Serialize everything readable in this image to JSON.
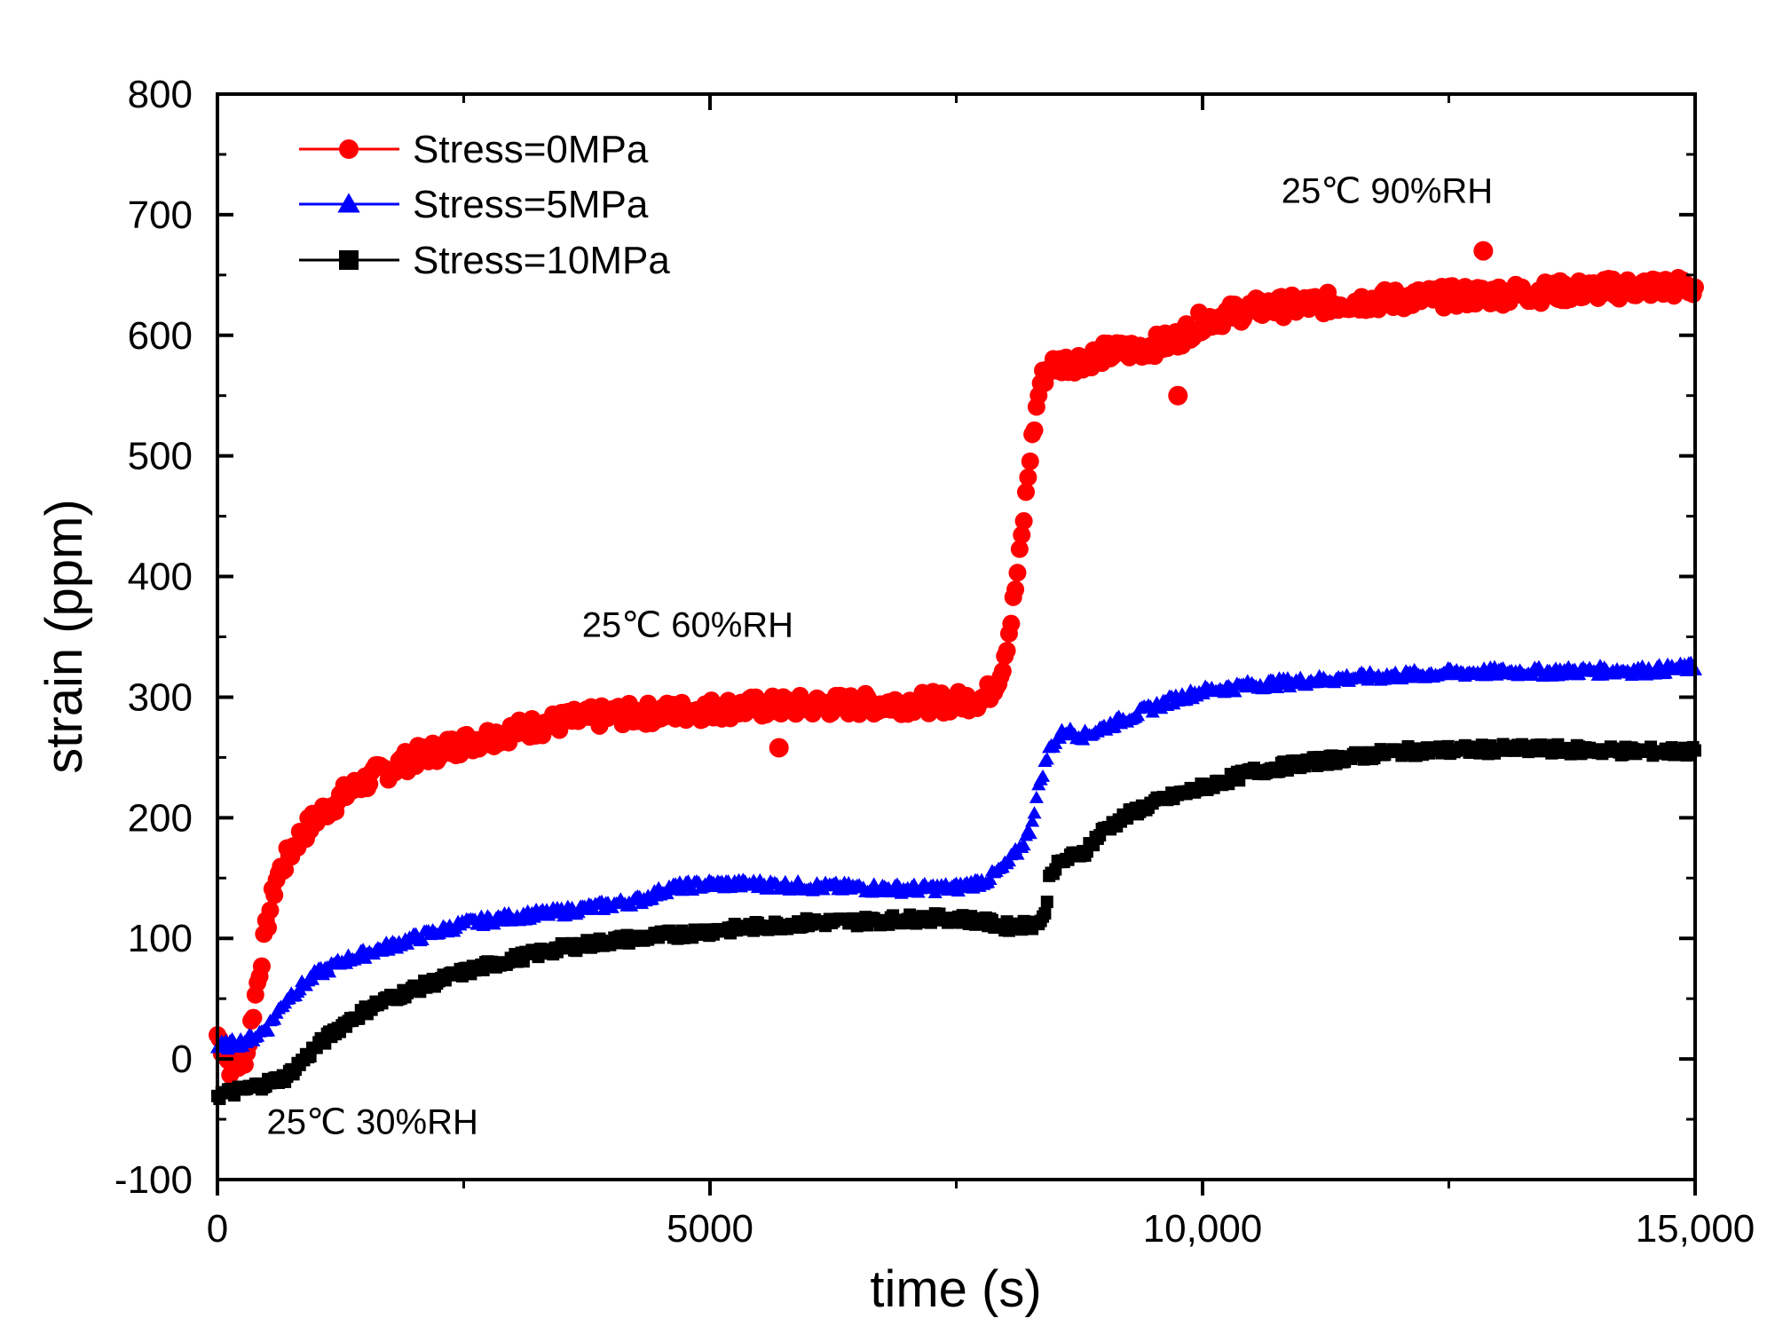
{
  "chart_data": {
    "type": "scatter",
    "title": "",
    "xlabel": "time (s)",
    "ylabel": "strain (ppm)",
    "xlim": [
      0,
      15000
    ],
    "ylim": [
      -100,
      800
    ],
    "x_ticks": [
      0,
      5000,
      10000,
      15000
    ],
    "x_tick_labels": [
      "0",
      "5000",
      "10,000",
      "15,000"
    ],
    "y_ticks": [
      -100,
      0,
      100,
      200,
      300,
      400,
      500,
      600,
      700,
      800
    ],
    "y_tick_labels": [
      "-100",
      "0",
      "100",
      "200",
      "300",
      "400",
      "500",
      "600",
      "700",
      "800"
    ],
    "grid": false,
    "legend_position": "top-left",
    "series": [
      {
        "name": "Stress=0MPa",
        "color": "#ff0000",
        "marker": "circle",
        "points": [
          [
            0,
            20
          ],
          [
            150,
            -10
          ],
          [
            300,
            5
          ],
          [
            400,
            60
          ],
          [
            500,
            110
          ],
          [
            600,
            150
          ],
          [
            800,
            180
          ],
          [
            1000,
            200
          ],
          [
            1300,
            220
          ],
          [
            1600,
            235
          ],
          [
            2000,
            250
          ],
          [
            2500,
            262
          ],
          [
            3000,
            272
          ],
          [
            3500,
            280
          ],
          [
            4000,
            285
          ],
          [
            4500,
            287
          ],
          [
            5000,
            290
          ],
          [
            5500,
            292
          ],
          [
            6000,
            293
          ],
          [
            6500,
            294
          ],
          [
            7000,
            295
          ],
          [
            7500,
            296
          ],
          [
            7800,
            300
          ],
          [
            7950,
            320
          ],
          [
            8050,
            360
          ],
          [
            8150,
            420
          ],
          [
            8250,
            500
          ],
          [
            8350,
            560
          ],
          [
            8450,
            575
          ],
          [
            8700,
            578
          ],
          [
            9000,
            585
          ],
          [
            9300,
            588
          ],
          [
            9700,
            595
          ],
          [
            10000,
            612
          ],
          [
            10500,
            622
          ],
          [
            11000,
            625
          ],
          [
            11500,
            628
          ],
          [
            12000,
            630
          ],
          [
            12500,
            632
          ],
          [
            13000,
            634
          ],
          [
            13500,
            636
          ],
          [
            14000,
            638
          ],
          [
            14500,
            640
          ],
          [
            15000,
            640
          ]
        ],
        "outliers": [
          [
            12850,
            670
          ],
          [
            9750,
            550
          ],
          [
            5700,
            258
          ]
        ]
      },
      {
        "name": "Stress=5MPa",
        "color": "#0000ff",
        "marker": "triangle",
        "points": [
          [
            0,
            10
          ],
          [
            300,
            15
          ],
          [
            500,
            25
          ],
          [
            700,
            50
          ],
          [
            1000,
            70
          ],
          [
            1300,
            82
          ],
          [
            1600,
            90
          ],
          [
            2000,
            100
          ],
          [
            2500,
            112
          ],
          [
            3000,
            118
          ],
          [
            3500,
            122
          ],
          [
            4000,
            128
          ],
          [
            4300,
            132
          ],
          [
            4600,
            142
          ],
          [
            5000,
            145
          ],
          [
            5500,
            145
          ],
          [
            6000,
            143
          ],
          [
            6500,
            142
          ],
          [
            7000,
            141
          ],
          [
            7500,
            142
          ],
          [
            7800,
            148
          ],
          [
            8000,
            160
          ],
          [
            8150,
            175
          ],
          [
            8250,
            190
          ],
          [
            8350,
            230
          ],
          [
            8450,
            258
          ],
          [
            8600,
            272
          ],
          [
            8800,
            268
          ],
          [
            9000,
            275
          ],
          [
            9300,
            285
          ],
          [
            9700,
            298
          ],
          [
            10000,
            305
          ],
          [
            10500,
            310
          ],
          [
            11000,
            313
          ],
          [
            11500,
            316
          ],
          [
            12000,
            318
          ],
          [
            12500,
            320
          ],
          [
            13000,
            321
          ],
          [
            13500,
            321
          ],
          [
            14000,
            322
          ],
          [
            14500,
            322
          ],
          [
            15000,
            325
          ]
        ]
      },
      {
        "name": "Stress=10MPa",
        "color": "#000000",
        "marker": "square",
        "points": [
          [
            0,
            -30
          ],
          [
            300,
            -25
          ],
          [
            500,
            -20
          ],
          [
            700,
            -15
          ],
          [
            1000,
            10
          ],
          [
            1300,
            30
          ],
          [
            1600,
            45
          ],
          [
            2000,
            58
          ],
          [
            2500,
            72
          ],
          [
            3000,
            83
          ],
          [
            3500,
            92
          ],
          [
            4000,
            98
          ],
          [
            4500,
            102
          ],
          [
            5000,
            106
          ],
          [
            5500,
            110
          ],
          [
            6000,
            113
          ],
          [
            6500,
            114
          ],
          [
            7000,
            116
          ],
          [
            7400,
            117
          ],
          [
            7700,
            115
          ],
          [
            8000,
            110
          ],
          [
            8300,
            112
          ],
          [
            8400,
            118
          ],
          [
            8450,
            155
          ],
          [
            8600,
            165
          ],
          [
            8800,
            172
          ],
          [
            9000,
            190
          ],
          [
            9300,
            205
          ],
          [
            9600,
            215
          ],
          [
            10000,
            225
          ],
          [
            10500,
            238
          ],
          [
            11000,
            245
          ],
          [
            11500,
            250
          ],
          [
            12000,
            255
          ],
          [
            12500,
            256
          ],
          [
            13000,
            257
          ],
          [
            13500,
            257
          ],
          [
            14000,
            256
          ],
          [
            14500,
            255
          ],
          [
            15000,
            255
          ]
        ]
      }
    ],
    "annotations": [
      {
        "text": "25℃ 30%RH",
        "x": 500,
        "y": -62
      },
      {
        "text": "25℃ 60%RH",
        "x": 3700,
        "y": 350
      },
      {
        "text": "25℃ 90%RH",
        "x": 10800,
        "y": 710
      }
    ]
  }
}
